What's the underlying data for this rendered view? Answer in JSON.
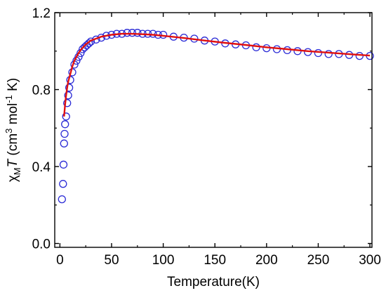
{
  "chart_data": {
    "type": "scatter",
    "xlabel": "Temperature(K)",
    "ylabel": {
      "chi": "χ",
      "sub": "M",
      "T": "T",
      "rest1": " (cm",
      "sup3": "3",
      "rest2": " mol",
      "supm1": "-1",
      "rest3": " K)"
    },
    "xlim": [
      -5,
      302
    ],
    "ylim": [
      -0.02,
      1.2
    ],
    "xticks": [
      0,
      50,
      100,
      150,
      200,
      250,
      300
    ],
    "yticks": [
      0.0,
      0.4,
      0.8,
      1.2
    ],
    "ytick_labels": [
      "0.0",
      "0.4",
      "0.8",
      "1.2"
    ],
    "grid": false,
    "series": [
      {
        "style": "open-circle",
        "color": "#2b2bd6",
        "x": [
          2,
          3,
          3.5,
          4,
          4.5,
          5,
          6,
          7,
          8,
          9,
          10,
          12,
          14,
          16,
          18,
          20,
          22,
          24,
          26,
          28,
          30,
          35,
          40,
          45,
          50,
          55,
          60,
          65,
          70,
          75,
          80,
          85,
          90,
          95,
          100,
          110,
          120,
          130,
          140,
          150,
          160,
          170,
          180,
          190,
          200,
          210,
          220,
          230,
          240,
          250,
          260,
          270,
          280,
          290,
          300
        ],
        "y": [
          0.23,
          0.31,
          0.41,
          0.52,
          0.57,
          0.62,
          0.66,
          0.73,
          0.77,
          0.81,
          0.85,
          0.89,
          0.93,
          0.95,
          0.97,
          0.99,
          1.01,
          1.02,
          1.03,
          1.04,
          1.05,
          1.06,
          1.07,
          1.08,
          1.085,
          1.09,
          1.09,
          1.095,
          1.095,
          1.095,
          1.09,
          1.09,
          1.09,
          1.085,
          1.085,
          1.075,
          1.07,
          1.065,
          1.055,
          1.05,
          1.04,
          1.035,
          1.03,
          1.02,
          1.015,
          1.01,
          1.005,
          1.0,
          0.995,
          0.99,
          0.985,
          0.985,
          0.98,
          0.975,
          0.975
        ]
      },
      {
        "style": "line",
        "color": "#e01010",
        "x": [
          4,
          5,
          6,
          7,
          8,
          10,
          12,
          14,
          16,
          18,
          20,
          25,
          30,
          35,
          40,
          50,
          60,
          70,
          80,
          90,
          100,
          120,
          140,
          160,
          180,
          200,
          220,
          240,
          260,
          280,
          300
        ],
        "y": [
          0.66,
          0.72,
          0.77,
          0.81,
          0.84,
          0.88,
          0.92,
          0.95,
          0.97,
          0.99,
          1.005,
          1.035,
          1.055,
          1.065,
          1.075,
          1.085,
          1.09,
          1.09,
          1.088,
          1.085,
          1.08,
          1.068,
          1.055,
          1.043,
          1.032,
          1.02,
          1.01,
          1.0,
          0.992,
          0.984,
          0.977
        ]
      }
    ]
  }
}
